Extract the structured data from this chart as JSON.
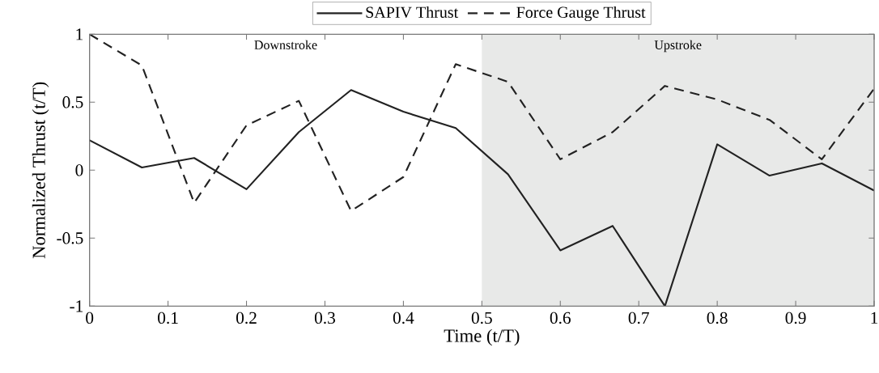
{
  "chart_data": {
    "type": "line",
    "xlabel": "Time (t/T)",
    "ylabel": "Normalized Thrust (t/T)",
    "x": [
      0,
      0.0667,
      0.1333,
      0.2,
      0.2667,
      0.3333,
      0.4,
      0.4667,
      0.5333,
      0.6,
      0.6667,
      0.7333,
      0.8,
      0.8667,
      0.9333,
      1.0
    ],
    "series": [
      {
        "name": "SAPIV Thrust",
        "color": "#222222",
        "line_style": "solid",
        "values": [
          0.22,
          0.02,
          0.09,
          -0.14,
          0.28,
          0.59,
          0.43,
          0.31,
          -0.03,
          -0.59,
          -0.41,
          -1.0,
          0.19,
          -0.04,
          0.05,
          -0.15
        ]
      },
      {
        "name": "Force Gauge Thrust",
        "color": "#222222",
        "line_style": "dashed",
        "values": [
          1.0,
          0.77,
          -0.24,
          0.33,
          0.51,
          -0.3,
          -0.05,
          0.78,
          0.65,
          0.08,
          0.28,
          0.62,
          0.52,
          0.37,
          0.08,
          0.6
        ]
      }
    ],
    "xlim": [
      0,
      1
    ],
    "ylim": [
      -1,
      1
    ],
    "xticks": [
      0,
      0.1,
      0.2,
      0.3,
      0.4,
      0.5,
      0.6,
      0.7,
      0.8,
      0.9,
      1
    ],
    "yticks": [
      -1,
      -0.5,
      0,
      0.5,
      1
    ],
    "bands": [
      {
        "axis": "x",
        "from": 0.5,
        "to": 1,
        "label": "Upstroke",
        "color": "#e8e9e8"
      }
    ],
    "annotations": [
      "Downstroke"
    ],
    "legend": "top",
    "grid": false
  }
}
